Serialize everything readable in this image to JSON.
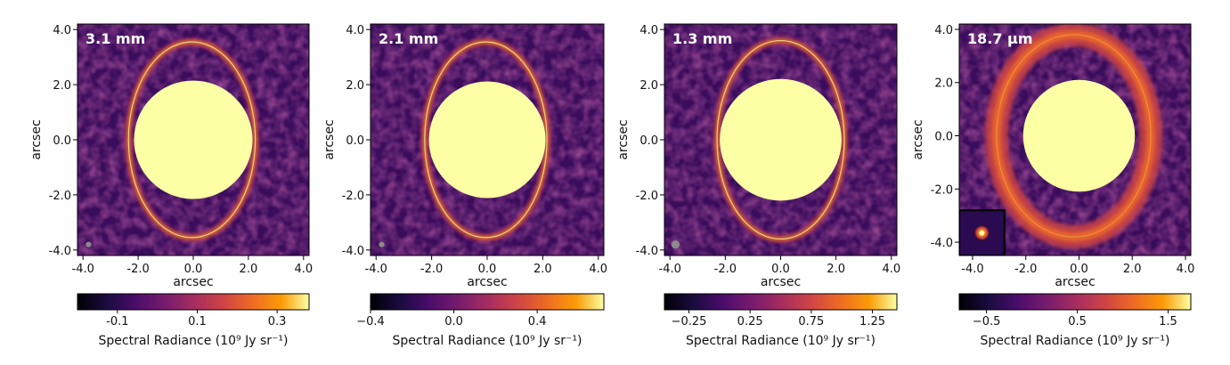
{
  "chart_data": [
    {
      "type": "heatmap",
      "label": "3.1 mm",
      "xlabel": "arcsec",
      "ylabel": "arcsec",
      "xlim": [
        -4.2,
        4.2
      ],
      "ylim": [
        -4.2,
        4.2
      ],
      "xticks": [
        "-4.0",
        "-2.0",
        "0.0",
        "2.0",
        "4.0"
      ],
      "yticks": [
        "4.0",
        "2.0",
        "0.0",
        "-2.0",
        "-4.0"
      ],
      "ring": {
        "a": 2.3,
        "b": 3.55,
        "x0": -0.05,
        "y0": 0.0
      },
      "mask_radius": 2.15,
      "beam": {
        "x": -3.8,
        "y": -3.8,
        "r": 0.1
      },
      "colorbar": {
        "ticks": [
          "-0.1",
          "0.1",
          "0.3"
        ],
        "tick_values": [
          -0.1,
          0.1,
          0.3
        ],
        "vmin": -0.2,
        "vmax": 0.38,
        "label": "Spectral Radiance (10⁹ Jy sr⁻¹)"
      }
    },
    {
      "type": "heatmap",
      "label": "2.1 mm",
      "xlabel": "arcsec",
      "ylabel": "arcsec",
      "xlim": [
        -4.2,
        4.2
      ],
      "ylim": [
        -4.2,
        4.2
      ],
      "xticks": [
        "-4.0",
        "-2.0",
        "0.0",
        "2.0",
        "4.0"
      ],
      "yticks": [
        "4.0",
        "2.0",
        "0.0",
        "-2.0",
        "-4.0"
      ],
      "ring": {
        "a": 2.2,
        "b": 3.55,
        "x0": -0.05,
        "y0": 0.0
      },
      "mask_radius": 2.1,
      "beam": {
        "x": -3.8,
        "y": -3.8,
        "r": 0.1
      },
      "colorbar": {
        "ticks": [
          "−0.4",
          "0.0",
          "0.4"
        ],
        "tick_values": [
          -0.4,
          0.0,
          0.4
        ],
        "vmin": -0.4,
        "vmax": 0.72,
        "label": "Spectral Radiance (10⁹ Jy sr⁻¹)"
      }
    },
    {
      "type": "heatmap",
      "label": "1.3 mm",
      "xlabel": "arcsec",
      "ylabel": "arcsec",
      "xlim": [
        -4.2,
        4.2
      ],
      "ylim": [
        -4.2,
        4.2
      ],
      "xticks": [
        "-4.0",
        "-2.0",
        "0.0",
        "2.0",
        "4.0"
      ],
      "yticks": [
        "4.0",
        "2.0",
        "0.0",
        "-2.0",
        "-4.0"
      ],
      "ring": {
        "a": 2.3,
        "b": 3.6,
        "x0": 0.0,
        "y0": 0.0
      },
      "mask_radius": 2.2,
      "beam": {
        "x": -3.8,
        "y": -3.8,
        "r": 0.15
      },
      "colorbar": {
        "ticks": [
          "−0.25",
          "0.25",
          "0.75",
          "1.25"
        ],
        "tick_values": [
          -0.25,
          0.25,
          0.75,
          1.25
        ],
        "vmin": -0.45,
        "vmax": 1.45,
        "label": "Spectral Radiance (10⁹ Jy sr⁻¹)"
      }
    },
    {
      "type": "heatmap",
      "label": "18.7 μm",
      "xlabel": "arcsec",
      "ylabel": "arcsec",
      "xlim": [
        -4.5,
        4.2
      ],
      "ylim": [
        -4.5,
        4.2
      ],
      "xticks": [
        "-4.0",
        "-2.0",
        "0.0",
        "2.0",
        "4.0"
      ],
      "yticks": [
        "4.0",
        "2.0",
        "0.0",
        "-2.0",
        "-4.0"
      ],
      "ring": {
        "a": 2.9,
        "b": 3.8,
        "x0": -0.2,
        "y0": 0.0
      },
      "mask_radius": 2.1,
      "inset": {
        "x0": -4.5,
        "x1": -2.8,
        "y0": -4.5,
        "y1": -2.8
      },
      "colorbar": {
        "ticks": [
          "−0.5",
          "0.5",
          "1.5"
        ],
        "tick_values": [
          -0.5,
          0.5,
          1.5
        ],
        "vmin": -0.8,
        "vmax": 1.75,
        "label": "Spectral Radiance (10⁹ Jy sr⁻¹)"
      }
    }
  ]
}
